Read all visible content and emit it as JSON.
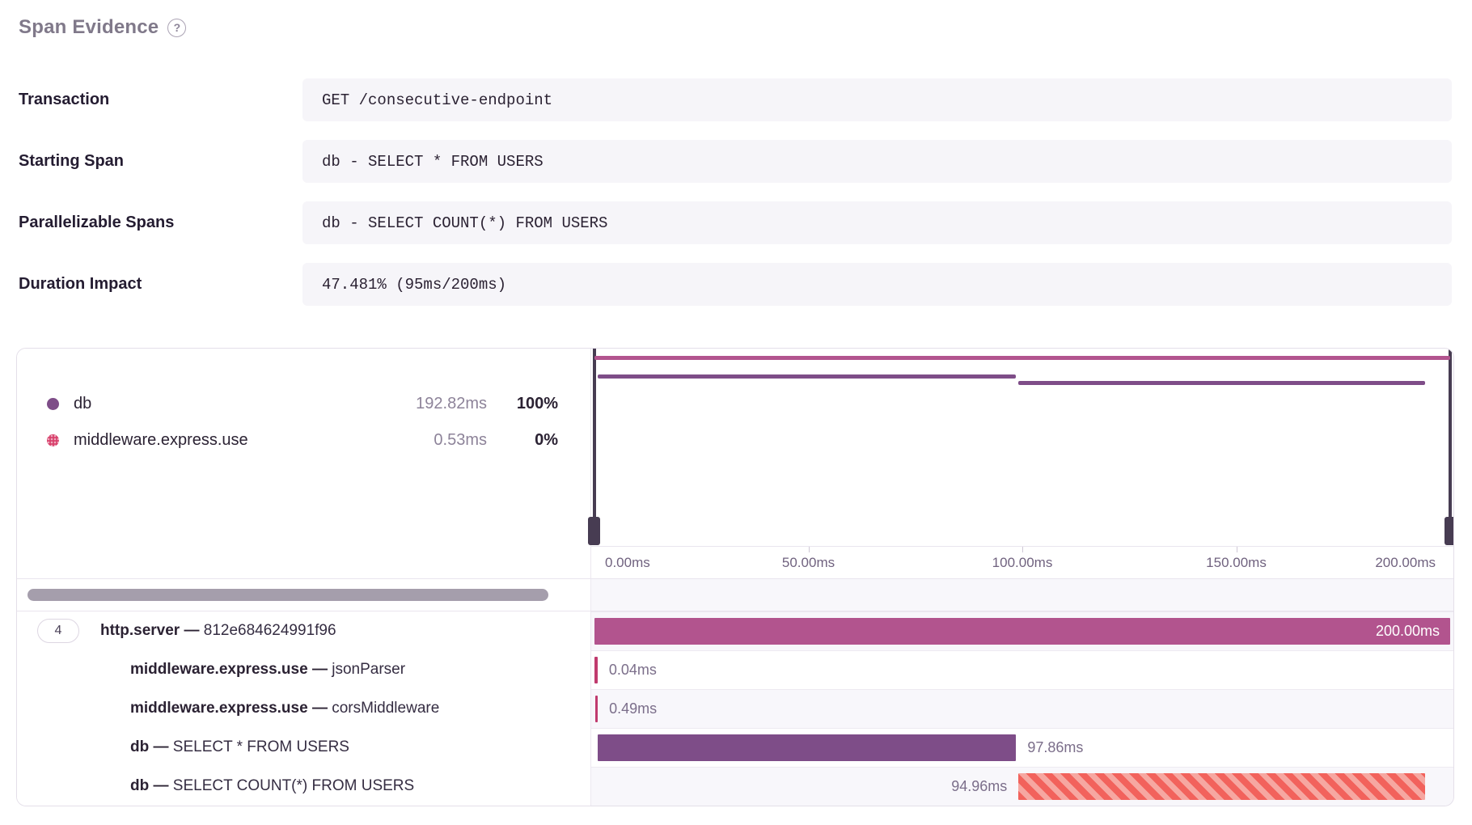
{
  "header": {
    "title": "Span Evidence",
    "help_icon": "?"
  },
  "evidence": [
    {
      "label": "Transaction",
      "value": "GET /consecutive-endpoint"
    },
    {
      "label": "Starting Span",
      "value": "db - SELECT * FROM USERS"
    },
    {
      "label": "Parallelizable Spans",
      "value": "db - SELECT COUNT(*) FROM USERS"
    },
    {
      "label": "Duration Impact",
      "value": "47.481% (95ms/200ms)"
    }
  ],
  "legend": [
    {
      "name": "db",
      "duration": "192.82ms",
      "percent": "100%",
      "color": "#7e4d88",
      "pattern": "solid"
    },
    {
      "name": "middleware.express.use",
      "duration": "0.53ms",
      "percent": "0%",
      "color": "#d8406b",
      "pattern": "dotted"
    }
  ],
  "minimap": {
    "spans": [
      {
        "op": "http.server",
        "start_ms": 0,
        "duration_ms": 200,
        "color": "#b2548e",
        "y": 9
      },
      {
        "op": "db",
        "start_ms": 0.7,
        "duration_ms": 97.86,
        "color": "#7e4d88",
        "y": 32
      },
      {
        "op": "db",
        "start_ms": 99.1,
        "duration_ms": 94.96,
        "color": "#7e4d88",
        "y": 40
      }
    ],
    "handle_color": "#473c52"
  },
  "axis": {
    "range_ms": [
      0,
      200
    ],
    "ticks": [
      {
        "label": "0.00ms",
        "ms": 0
      },
      {
        "label": "50.00ms",
        "ms": 50
      },
      {
        "label": "100.00ms",
        "ms": 100
      },
      {
        "label": "150.00ms",
        "ms": 150
      },
      {
        "label": "200.00ms",
        "ms": 200
      }
    ]
  },
  "waterfall": {
    "rows": [
      {
        "badge": "4",
        "op": "http.server",
        "sep": "—",
        "desc": "812e684624991f96",
        "duration": "200.00ms",
        "start_ms": 0,
        "duration_ms": 200,
        "color": "#b2548e",
        "label_pos": "inside",
        "shade": true,
        "striped": false
      },
      {
        "op": "middleware.express.use",
        "sep": "—",
        "desc": "jsonParser",
        "duration": "0.04ms",
        "start_ms": 0.06,
        "duration_ms": 0.04,
        "color": "#c03a6e",
        "label_pos": "right",
        "shade": false,
        "striped": false
      },
      {
        "op": "middleware.express.use",
        "sep": "—",
        "desc": "corsMiddleware",
        "duration": "0.49ms",
        "start_ms": 0.12,
        "duration_ms": 0.49,
        "color": "#c03a6e",
        "label_pos": "right",
        "shade": true,
        "striped": false
      },
      {
        "op": "db",
        "sep": "—",
        "desc": "SELECT * FROM USERS",
        "duration": "97.86ms",
        "start_ms": 0.7,
        "duration_ms": 97.86,
        "color": "#7e4d88",
        "label_pos": "right",
        "shade": false,
        "striped": false
      },
      {
        "op": "db",
        "sep": "—",
        "desc": "SELECT COUNT(*) FROM USERS",
        "duration": "94.96ms",
        "start_ms": 99.1,
        "duration_ms": 94.96,
        "color": "#f2625c",
        "label_pos": "left",
        "shade": true,
        "striped": true
      }
    ]
  },
  "colors": {
    "http_span": "#b2548e",
    "db_span": "#7e4d88",
    "middleware_span": "#c03a6e",
    "stripe_dark": "#f2625c",
    "stripe_light": "#f6a7a1",
    "handle": "#473c52",
    "scrollbar_thumb": "#a59eac",
    "value_box_bg": "#f6f5f9"
  }
}
